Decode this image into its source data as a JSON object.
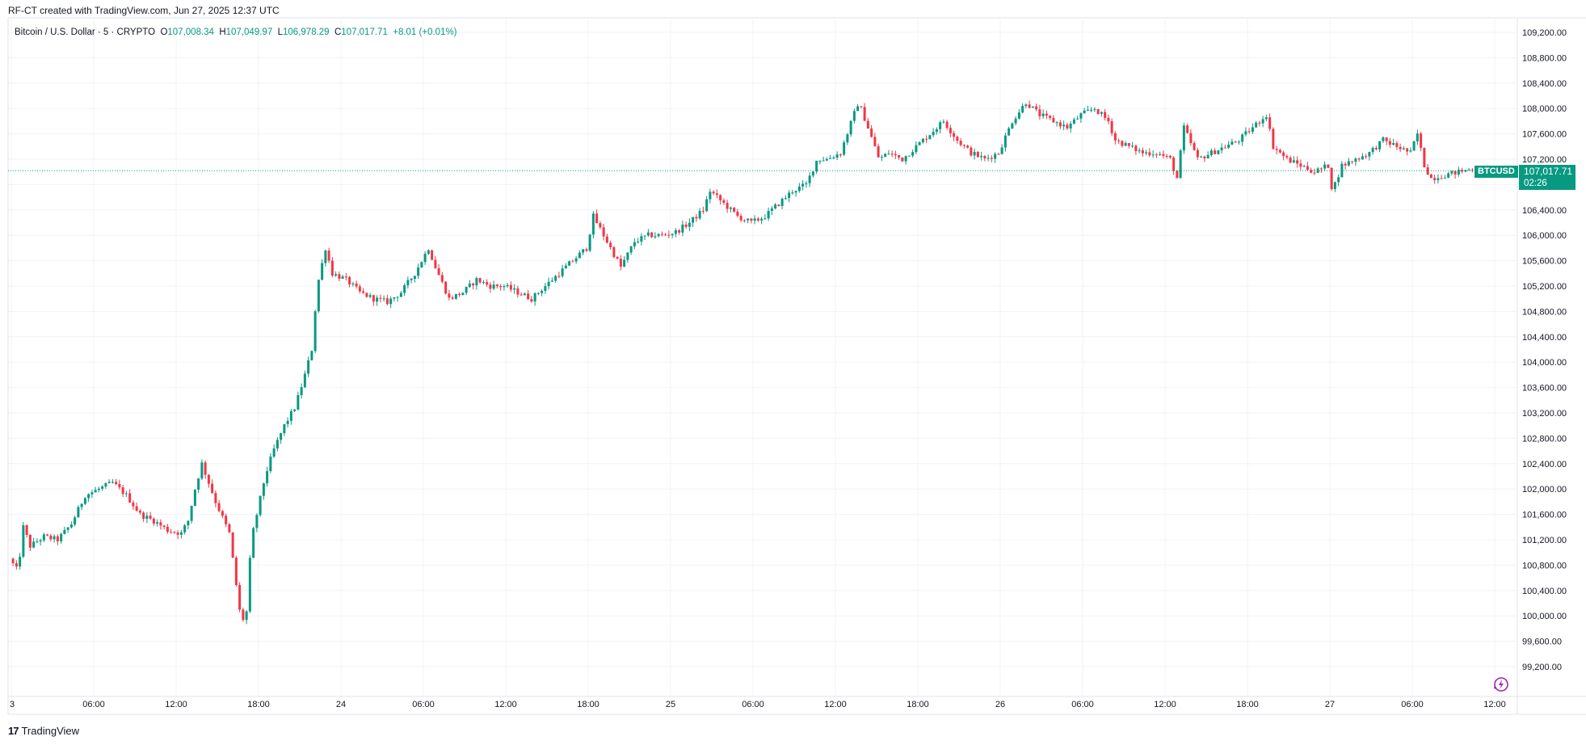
{
  "header": {
    "attribution": "RF-CT created with TradingView.com, Jun 27, 2025 12:37 UTC"
  },
  "legend": {
    "symbol": "Bitcoin / U.S. Dollar · 5 · CRYPTO",
    "o_label": "O",
    "o_value": "107,008.34",
    "h_label": "H",
    "h_value": "107,049.97",
    "l_label": "L",
    "l_value": "106,978.29",
    "c_label": "C",
    "c_value": "107,017.71",
    "change": "+8.01 (+0.01%)"
  },
  "price_tag": {
    "ticker": "BTCUSD",
    "price": "107,017.71",
    "countdown": "02:26"
  },
  "footer": {
    "brand": "TradingView"
  },
  "colors": {
    "up": "#089981",
    "down": "#f23645",
    "grid": "#f0f3fa",
    "axis_text": "#131722"
  },
  "chart_data": {
    "type": "candlestick",
    "title": "Bitcoin / U.S. Dollar · 5 · CRYPTO",
    "interval": "5m",
    "y_axis_labels": [
      "109,200.00",
      "108,800.00",
      "108,400.00",
      "108,000.00",
      "107,600.00",
      "107,200.00",
      "106,800.00",
      "106,400.00",
      "106,000.00",
      "105,600.00",
      "105,200.00",
      "104,800.00",
      "104,400.00",
      "104,000.00",
      "103,600.00",
      "103,200.00",
      "102,800.00",
      "102,400.00",
      "102,000.00",
      "101,600.00",
      "101,200.00",
      "100,800.00",
      "100,400.00",
      "100,000.00",
      "99,600.00",
      "99,200.00"
    ],
    "y_axis_values": [
      109200,
      108800,
      108400,
      108000,
      107600,
      107200,
      106800,
      106400,
      106000,
      105600,
      105200,
      104800,
      104400,
      104000,
      103600,
      103200,
      102800,
      102400,
      102000,
      101600,
      101200,
      100800,
      100400,
      100000,
      99600,
      99200
    ],
    "x_axis_labels": [
      "3",
      "06:00",
      "12:00",
      "18:00",
      "24",
      "06:00",
      "12:00",
      "18:00",
      "25",
      "06:00",
      "12:00",
      "18:00",
      "26",
      "06:00",
      "12:00",
      "18:00",
      "27",
      "06:00",
      "12:00"
    ],
    "x_axis_hours": [
      0,
      6,
      12,
      18,
      24,
      30,
      36,
      42,
      48,
      54,
      60,
      66,
      72,
      78,
      84,
      90,
      96,
      102,
      108
    ],
    "last_price": 107017.71,
    "price_path_anchors": [
      [
        0.0,
        100900
      ],
      [
        0.6,
        100700
      ],
      [
        1.0,
        101400
      ],
      [
        1.5,
        101100
      ],
      [
        2.5,
        101250
      ],
      [
        3.5,
        101200
      ],
      [
        4.5,
        101450
      ],
      [
        5.5,
        101900
      ],
      [
        6.5,
        102000
      ],
      [
        7.5,
        102100
      ],
      [
        8.5,
        101900
      ],
      [
        9.5,
        101600
      ],
      [
        10.5,
        101500
      ],
      [
        11.5,
        101350
      ],
      [
        12.5,
        101300
      ],
      [
        13.0,
        101500
      ],
      [
        13.5,
        102000
      ],
      [
        14.0,
        102400
      ],
      [
        15.0,
        101800
      ],
      [
        16.0,
        101300
      ],
      [
        16.8,
        100000
      ],
      [
        17.2,
        99900
      ],
      [
        17.6,
        101200
      ],
      [
        18.0,
        101600
      ],
      [
        18.6,
        102200
      ],
      [
        19.2,
        102600
      ],
      [
        20.0,
        103000
      ],
      [
        20.8,
        103300
      ],
      [
        21.5,
        103800
      ],
      [
        22.0,
        104200
      ],
      [
        22.4,
        105200
      ],
      [
        23.0,
        105800
      ],
      [
        23.5,
        105400
      ],
      [
        24.5,
        105300
      ],
      [
        25.5,
        105100
      ],
      [
        26.5,
        105000
      ],
      [
        27.5,
        104950
      ],
      [
        28.5,
        105100
      ],
      [
        29.5,
        105400
      ],
      [
        30.5,
        105800
      ],
      [
        31.0,
        105500
      ],
      [
        32.0,
        105000
      ],
      [
        33.0,
        105100
      ],
      [
        34.0,
        105300
      ],
      [
        35.0,
        105200
      ],
      [
        36.0,
        105200
      ],
      [
        37.0,
        105100
      ],
      [
        38.0,
        105000
      ],
      [
        39.0,
        105200
      ],
      [
        40.0,
        105400
      ],
      [
        41.0,
        105600
      ],
      [
        42.0,
        105800
      ],
      [
        42.5,
        106300
      ],
      [
        43.5,
        105900
      ],
      [
        44.5,
        105500
      ],
      [
        45.5,
        105900
      ],
      [
        46.5,
        106000
      ],
      [
        47.5,
        106000
      ],
      [
        48.5,
        106050
      ],
      [
        49.5,
        106200
      ],
      [
        50.5,
        106400
      ],
      [
        51.0,
        106700
      ],
      [
        52.0,
        106500
      ],
      [
        53.0,
        106300
      ],
      [
        54.0,
        106200
      ],
      [
        55.0,
        106300
      ],
      [
        56.0,
        106500
      ],
      [
        57.0,
        106700
      ],
      [
        58.0,
        106800
      ],
      [
        58.8,
        107200
      ],
      [
        59.5,
        107200
      ],
      [
        60.5,
        107300
      ],
      [
        61.3,
        107800
      ],
      [
        61.8,
        108100
      ],
      [
        62.5,
        107700
      ],
      [
        63.3,
        107200
      ],
      [
        64.0,
        107300
      ],
      [
        65.0,
        107200
      ],
      [
        66.0,
        107400
      ],
      [
        67.0,
        107600
      ],
      [
        68.0,
        107800
      ],
      [
        69.0,
        107500
      ],
      [
        70.0,
        107300
      ],
      [
        71.0,
        107200
      ],
      [
        72.0,
        107300
      ],
      [
        73.0,
        107800
      ],
      [
        74.0,
        108100
      ],
      [
        75.0,
        107900
      ],
      [
        76.0,
        107800
      ],
      [
        77.0,
        107700
      ],
      [
        78.0,
        107900
      ],
      [
        79.0,
        108000
      ],
      [
        80.0,
        107800
      ],
      [
        80.5,
        107500
      ],
      [
        81.5,
        107400
      ],
      [
        82.5,
        107300
      ],
      [
        83.5,
        107300
      ],
      [
        84.5,
        107200
      ],
      [
        85.0,
        106900
      ],
      [
        85.5,
        107700
      ],
      [
        86.5,
        107200
      ],
      [
        87.5,
        107300
      ],
      [
        88.5,
        107400
      ],
      [
        89.5,
        107500
      ],
      [
        90.5,
        107700
      ],
      [
        91.5,
        107900
      ],
      [
        92.0,
        107400
      ],
      [
        93.0,
        107200
      ],
      [
        94.0,
        107100
      ],
      [
        95.0,
        107000
      ],
      [
        96.0,
        107100
      ],
      [
        96.3,
        106700
      ],
      [
        97.0,
        107100
      ],
      [
        98.0,
        107200
      ],
      [
        99.0,
        107300
      ],
      [
        100.0,
        107500
      ],
      [
        101.0,
        107400
      ],
      [
        102.0,
        107300
      ],
      [
        102.5,
        107600
      ],
      [
        103.0,
        107100
      ],
      [
        103.5,
        106900
      ],
      [
        104.5,
        106950
      ],
      [
        105.5,
        107000
      ],
      [
        106.5,
        107050
      ],
      [
        107.2,
        107017.71
      ]
    ]
  }
}
